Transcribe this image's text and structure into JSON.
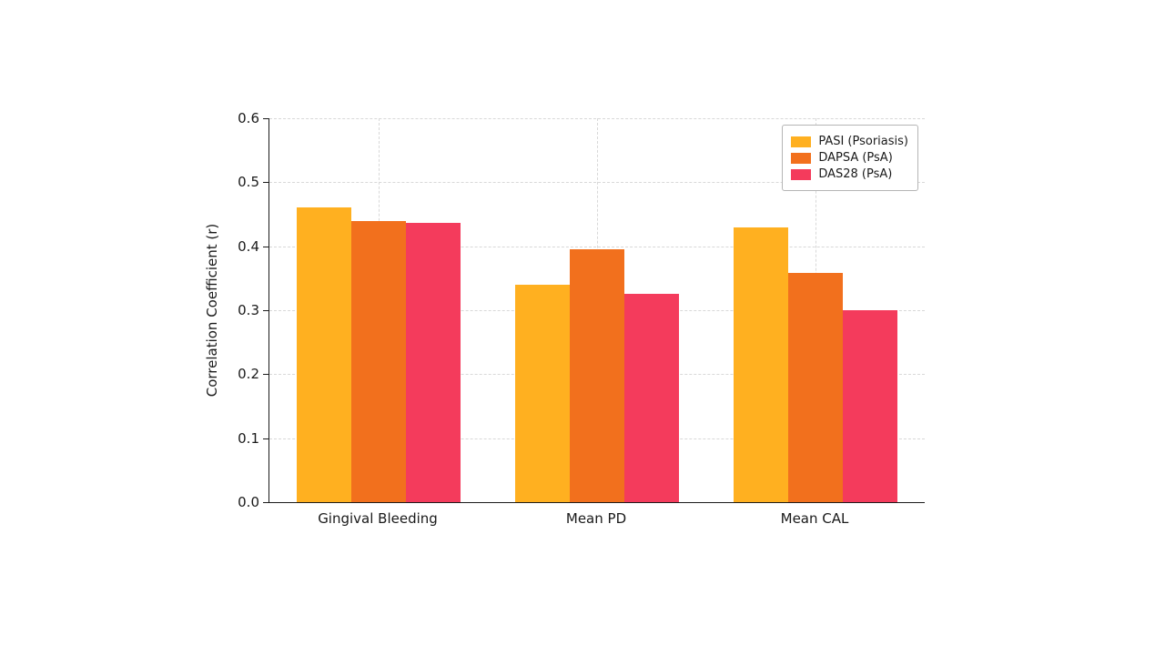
{
  "chart_data": {
    "type": "bar",
    "title": "",
    "categories": [
      "Gingival Bleeding",
      "Mean PD",
      "Mean CAL"
    ],
    "series": [
      {
        "name": "PASI (Psoriasis)",
        "color": "#FFB020",
        "values": [
          0.46,
          0.34,
          0.43
        ]
      },
      {
        "name": "DAPSA (PsA)",
        "color": "#F2701D",
        "values": [
          0.44,
          0.395,
          0.358
        ]
      },
      {
        "name": "DAS28 (PsA)",
        "color": "#F43B5C",
        "values": [
          0.437,
          0.325,
          0.3
        ]
      }
    ],
    "xlabel": "",
    "ylabel": "Correlation Coefficient (r)",
    "ylim": [
      0.0,
      0.6
    ],
    "yticks": [
      0.0,
      0.1,
      0.2,
      0.3,
      0.4,
      0.5,
      0.6
    ],
    "grid": "dashed",
    "legend_position": "upper right"
  }
}
